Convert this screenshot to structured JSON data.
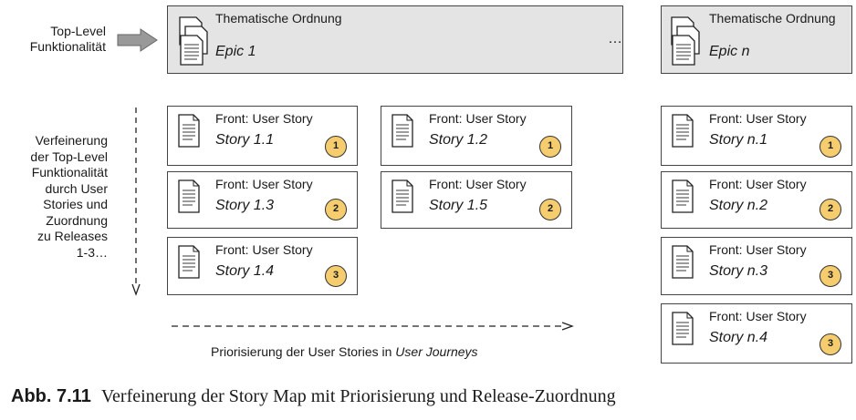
{
  "side": {
    "top_level": [
      "Top-Level",
      "Funktionalität"
    ],
    "refinement": [
      "Verfeinerung",
      "der Top-Level",
      "Funktionalität",
      "durch User",
      "Stories und",
      "Zuordnung",
      "zu Releases",
      "1-3…"
    ]
  },
  "epics": [
    {
      "title": "Thematische Ordnung",
      "name": "Epic 1"
    },
    {
      "title": "Thematische Ordnung",
      "name": "Epic n"
    }
  ],
  "ellipsis": "…",
  "stories": [
    {
      "title": "Front: User Story",
      "name": "Story 1.1",
      "release": "1"
    },
    {
      "title": "Front: User Story",
      "name": "Story 1.3",
      "release": "2"
    },
    {
      "title": "Front: User Story",
      "name": "Story 1.4",
      "release": "3"
    },
    {
      "title": "Front: User Story",
      "name": "Story 1.2",
      "release": "1"
    },
    {
      "title": "Front: User Story",
      "name": "Story 1.5",
      "release": "2"
    },
    {
      "title": "Front: User Story",
      "name": "Story n.1",
      "release": "1"
    },
    {
      "title": "Front: User Story",
      "name": "Story n.2",
      "release": "2"
    },
    {
      "title": "Front: User Story",
      "name": "Story n.3",
      "release": "3"
    },
    {
      "title": "Front: User Story",
      "name": "Story n.4",
      "release": "3"
    }
  ],
  "prioritization": {
    "text": "Priorisierung der User Stories in ",
    "emphasis": "User Journeys"
  },
  "caption": {
    "label": "Abb. 7.11",
    "text": "Verfeinerung der Story Map mit Priorisierung und Release-Zuordnung"
  },
  "colors": {
    "epic_fill": "#e4e4e4",
    "badge_fill": "#f5cd6e",
    "arrow_fill": "#999999"
  }
}
